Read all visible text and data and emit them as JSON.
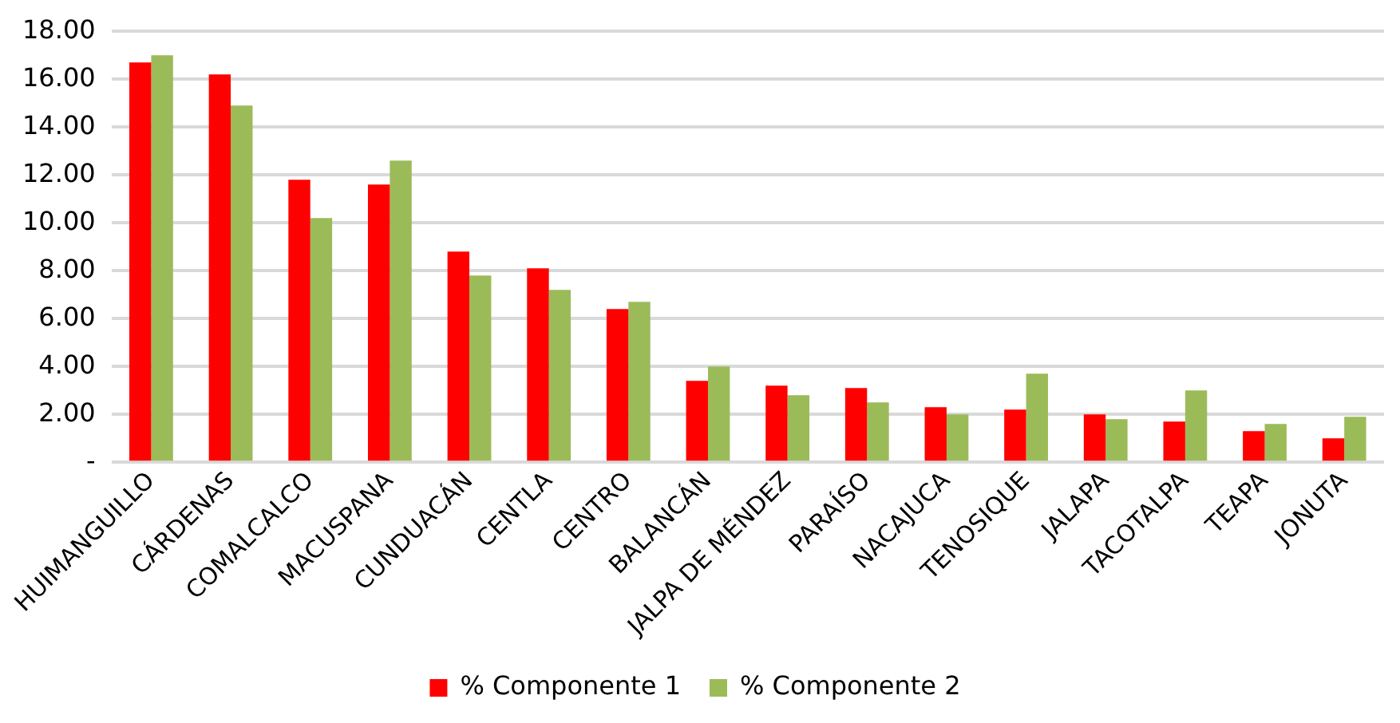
{
  "chart_data": {
    "type": "bar",
    "categories": [
      "HUIMANGUILLO",
      "CÁRDENAS",
      "COMALCALCO",
      "MACUSPANA",
      "CUNDUACÁN",
      "CENTLA",
      "CENTRO",
      "BALANCÁN",
      "JALPA DE MÉNDEZ",
      "PARAÍSO",
      "NACAJUCA",
      "TENOSIQUE",
      "JALAPA",
      "TACOTALPA",
      "TEAPA",
      "JONUTA"
    ],
    "series": [
      {
        "name": "% Componente 1",
        "color": "#ff0000",
        "values": [
          16.7,
          16.2,
          11.8,
          11.6,
          8.8,
          8.1,
          6.4,
          3.4,
          3.2,
          3.1,
          2.3,
          2.2,
          2.0,
          1.7,
          1.3,
          1.0
        ]
      },
      {
        "name": "% Componente 2",
        "color": "#9bbb59",
        "values": [
          17.0,
          14.9,
          10.2,
          12.6,
          7.8,
          7.2,
          6.7,
          4.0,
          2.8,
          2.5,
          2.0,
          3.7,
          1.8,
          3.0,
          1.6,
          1.9
        ]
      }
    ],
    "ylim": [
      0,
      18
    ],
    "yticks": [
      {
        "value": 0,
        "label": "-"
      },
      {
        "value": 2,
        "label": "2.00"
      },
      {
        "value": 4,
        "label": "4.00"
      },
      {
        "value": 6,
        "label": "6.00"
      },
      {
        "value": 8,
        "label": "8.00"
      },
      {
        "value": 10,
        "label": "10.00"
      },
      {
        "value": 12,
        "label": "12.00"
      },
      {
        "value": 14,
        "label": "14.00"
      },
      {
        "value": 16,
        "label": "16.00"
      },
      {
        "value": 18,
        "label": "18.00"
      }
    ],
    "grid": "y",
    "legend": "bottom"
  }
}
